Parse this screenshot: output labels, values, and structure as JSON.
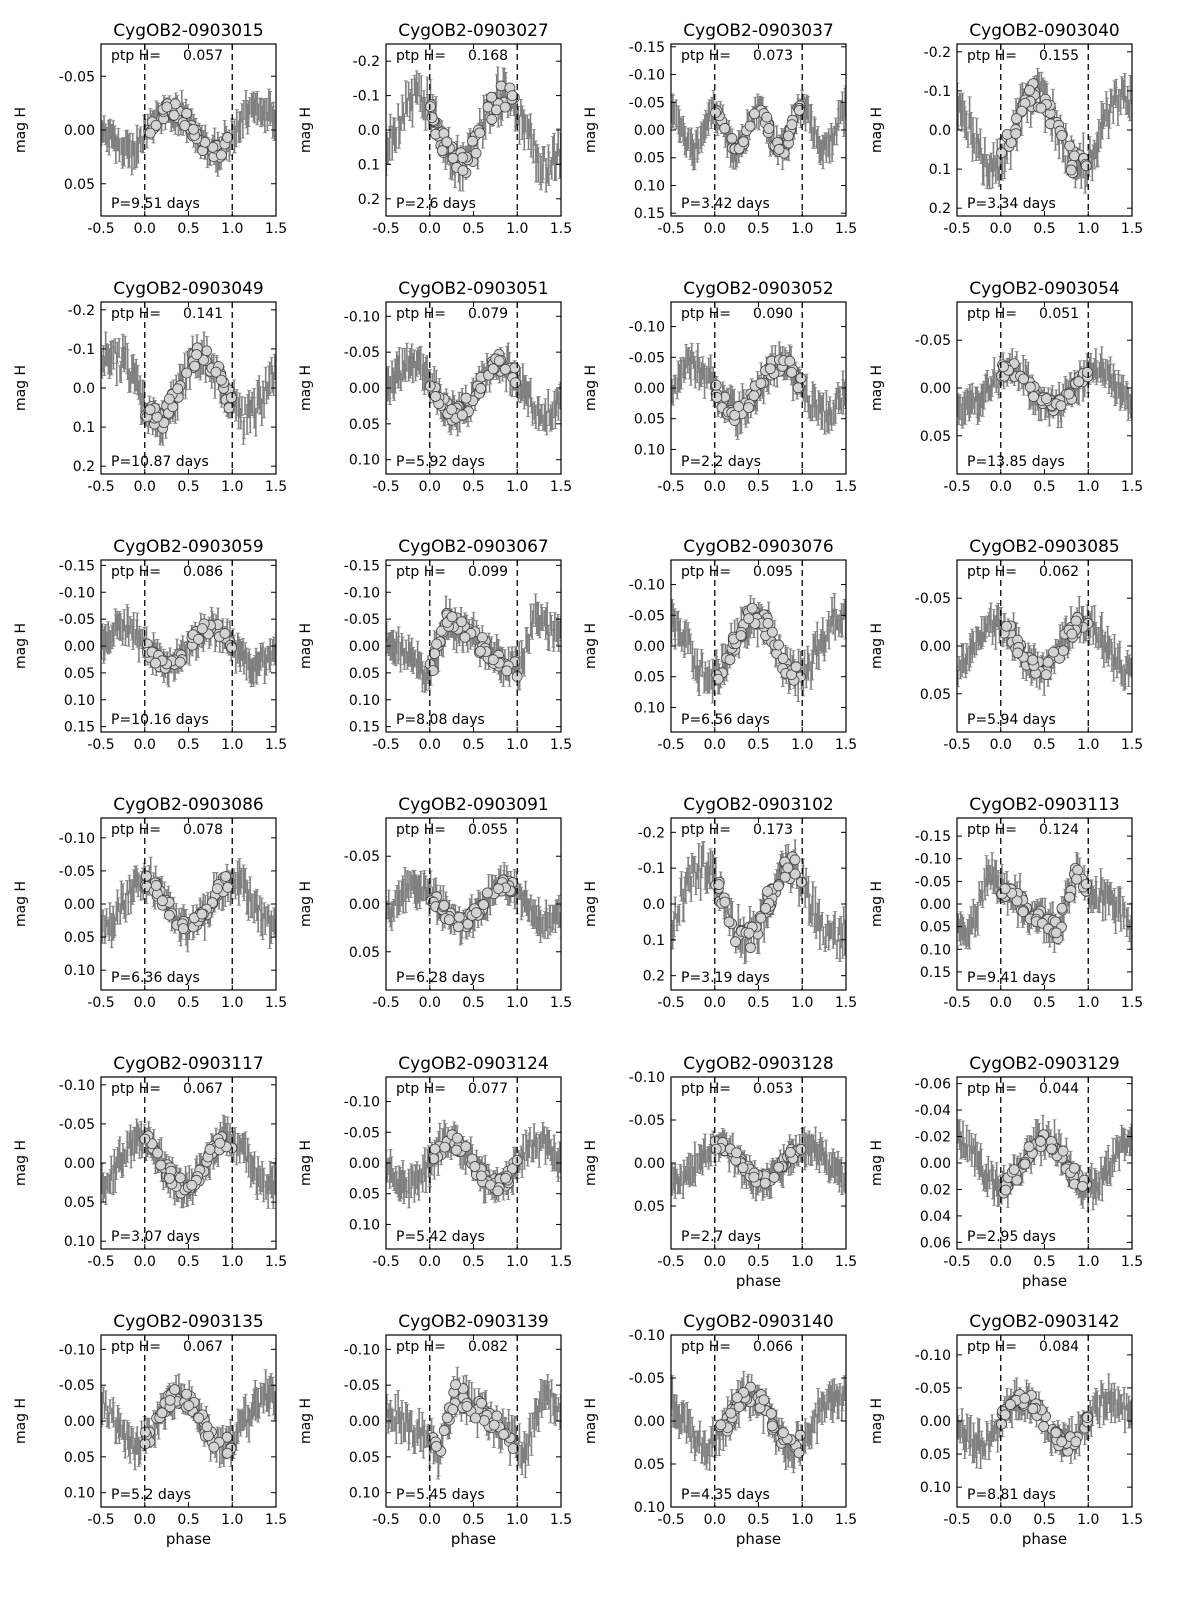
{
  "figure": {
    "ptp_label": "ptp H=",
    "ylabel": "mag H",
    "xlabel": "phase",
    "xticks": [
      "-0.5",
      "0.0",
      "0.5",
      "1.0",
      "1.5"
    ],
    "colors": {
      "errorbar": "#808080",
      "marker_fill": "#d3d3d3",
      "marker_edge": "#444444",
      "axes": "#000000",
      "dashed": "#000000"
    }
  },
  "chart_data": [
    {
      "type": "scatter",
      "title": "CygOB2-0903015",
      "ptp": "0.057",
      "period_text": "P=9.51 days",
      "ylim": [
        0.08,
        -0.08
      ],
      "yticks": [
        "-0.05",
        "0.00",
        "0.05"
      ],
      "show_xlabel": false,
      "amp": 0.02,
      "phase0": 0.3,
      "shape": "sin"
    },
    {
      "type": "scatter",
      "title": "CygOB2-0903027",
      "ptp": "0.168",
      "period_text": "P=2.6 days",
      "ylim": [
        0.25,
        -0.25
      ],
      "yticks": [
        "-0.2",
        "-0.1",
        "0.0",
        "0.1",
        "0.2"
      ],
      "show_xlabel": false,
      "amp": 0.1,
      "phase0": 0.85,
      "shape": "sin"
    },
    {
      "type": "scatter",
      "title": "CygOB2-0903037",
      "ptp": "0.073",
      "period_text": "P=3.42 days",
      "ylim": [
        0.155,
        -0.155
      ],
      "yticks": [
        "-0.15",
        "-0.10",
        "-0.05",
        "0.00",
        "0.05",
        "0.10",
        "0.15"
      ],
      "show_xlabel": false,
      "amp": 0.035,
      "phase0": 0.0,
      "shape": "double"
    },
    {
      "type": "scatter",
      "title": "CygOB2-0903040",
      "ptp": "0.155",
      "period_text": "P=3.34 days",
      "ylim": [
        0.22,
        -0.22
      ],
      "yticks": [
        "-0.2",
        "-0.1",
        "0.0",
        "0.1",
        "0.2"
      ],
      "show_xlabel": false,
      "amp": 0.09,
      "phase0": 0.4,
      "shape": "sin"
    },
    {
      "type": "scatter",
      "title": "CygOB2-0903049",
      "ptp": "0.141",
      "period_text": "P=10.87 days",
      "ylim": [
        0.22,
        -0.22
      ],
      "yticks": [
        "-0.2",
        "-0.1",
        "0.0",
        "0.1",
        "0.2"
      ],
      "show_xlabel": false,
      "amp": 0.08,
      "phase0": 0.65,
      "shape": "sin"
    },
    {
      "type": "scatter",
      "title": "CygOB2-0903051",
      "ptp": "0.079",
      "period_text": "P=5.92 days",
      "ylim": [
        0.12,
        -0.12
      ],
      "yticks": [
        "-0.10",
        "-0.05",
        "0.00",
        "0.05",
        "0.10"
      ],
      "show_xlabel": false,
      "amp": 0.035,
      "phase0": 0.8,
      "shape": "sin"
    },
    {
      "type": "scatter",
      "title": "CygOB2-0903052",
      "ptp": "0.090",
      "period_text": "P=2.2 days",
      "ylim": [
        0.14,
        -0.14
      ],
      "yticks": [
        "-0.10",
        "-0.05",
        "0.00",
        "0.05",
        "0.10"
      ],
      "show_xlabel": false,
      "amp": 0.04,
      "phase0": 0.75,
      "shape": "sin"
    },
    {
      "type": "scatter",
      "title": "CygOB2-0903054",
      "ptp": "0.051",
      "period_text": "P=13.85 days",
      "ylim": [
        0.09,
        -0.09
      ],
      "yticks": [
        "-0.05",
        "0.00",
        "0.05"
      ],
      "show_xlabel": false,
      "amp": 0.02,
      "phase0": 0.1,
      "shape": "sin"
    },
    {
      "type": "scatter",
      "title": "CygOB2-0903059",
      "ptp": "0.086",
      "period_text": "P=10.16 days",
      "ylim": [
        0.16,
        -0.16
      ],
      "yticks": [
        "-0.15",
        "-0.10",
        "-0.05",
        "0.00",
        "0.05",
        "0.10",
        "0.15"
      ],
      "show_xlabel": false,
      "amp": 0.035,
      "phase0": 0.75,
      "shape": "sin"
    },
    {
      "type": "scatter",
      "title": "CygOB2-0903067",
      "ptp": "0.099",
      "period_text": "P=8.08 days",
      "ylim": [
        0.16,
        -0.16
      ],
      "yticks": [
        "-0.15",
        "-0.10",
        "-0.05",
        "0.00",
        "0.05",
        "0.10",
        "0.15"
      ],
      "show_xlabel": false,
      "amp": 0.05,
      "phase0": 0.2,
      "shape": "saw"
    },
    {
      "type": "scatter",
      "title": "CygOB2-0903076",
      "ptp": "0.095",
      "period_text": "P=6.56 days",
      "ylim": [
        0.14,
        -0.14
      ],
      "yticks": [
        "-0.10",
        "-0.05",
        "0.00",
        "0.05",
        "0.10"
      ],
      "show_xlabel": false,
      "amp": 0.05,
      "phase0": 0.45,
      "shape": "sin"
    },
    {
      "type": "scatter",
      "title": "CygOB2-0903085",
      "ptp": "0.062",
      "period_text": "P=5.94 days",
      "ylim": [
        0.09,
        -0.09
      ],
      "yticks": [
        "-0.05",
        "0.00",
        "0.05"
      ],
      "show_xlabel": false,
      "amp": 0.025,
      "phase0": 0.95,
      "shape": "sin"
    },
    {
      "type": "scatter",
      "title": "CygOB2-0903086",
      "ptp": "0.078",
      "period_text": "P=6.36 days",
      "ylim": [
        0.13,
        -0.13
      ],
      "yticks": [
        "-0.10",
        "-0.05",
        "0.00",
        "0.05",
        "0.10"
      ],
      "show_xlabel": false,
      "amp": 0.035,
      "phase0": 0.0,
      "shape": "sin"
    },
    {
      "type": "scatter",
      "title": "CygOB2-0903091",
      "ptp": "0.055",
      "period_text": "P=6.28 days",
      "ylim": [
        0.09,
        -0.09
      ],
      "yticks": [
        "-0.05",
        "0.00",
        "0.05"
      ],
      "show_xlabel": false,
      "amp": 0.02,
      "phase0": 0.85,
      "shape": "sin"
    },
    {
      "type": "scatter",
      "title": "CygOB2-0903102",
      "ptp": "0.173",
      "period_text": "P=3.19 days",
      "ylim": [
        0.24,
        -0.24
      ],
      "yticks": [
        "-0.2",
        "-0.1",
        "0.0",
        "0.1",
        "0.2"
      ],
      "show_xlabel": false,
      "amp": 0.1,
      "phase0": 0.85,
      "shape": "sin"
    },
    {
      "type": "scatter",
      "title": "CygOB2-0903113",
      "ptp": "0.124",
      "period_text": "P=9.41 days",
      "ylim": [
        0.19,
        -0.19
      ],
      "yticks": [
        "-0.15",
        "-0.10",
        "-0.05",
        "0.00",
        "0.05",
        "0.10",
        "0.15"
      ],
      "show_xlabel": false,
      "amp": 0.06,
      "phase0": 0.85,
      "shape": "saw"
    },
    {
      "type": "scatter",
      "title": "CygOB2-0903117",
      "ptp": "0.067",
      "period_text": "P=3.07 days",
      "ylim": [
        0.11,
        -0.11
      ],
      "yticks": [
        "-0.10",
        "-0.05",
        "0.00",
        "0.05",
        "0.10"
      ],
      "show_xlabel": false,
      "amp": 0.03,
      "phase0": 0.95,
      "shape": "sin"
    },
    {
      "type": "scatter",
      "title": "CygOB2-0903124",
      "ptp": "0.077",
      "period_text": "P=5.42 days",
      "ylim": [
        0.14,
        -0.14
      ],
      "yticks": [
        "-0.10",
        "-0.05",
        "0.00",
        "0.05",
        "0.10"
      ],
      "show_xlabel": false,
      "amp": 0.035,
      "phase0": 0.25,
      "shape": "sin"
    },
    {
      "type": "scatter",
      "title": "CygOB2-0903128",
      "ptp": "0.053",
      "period_text": "P=2.7 days",
      "ylim": [
        0.1,
        -0.1
      ],
      "yticks": [
        "-0.10",
        "-0.05",
        "0.00",
        "0.05"
      ],
      "show_xlabel": true,
      "amp": 0.02,
      "phase0": 0.05,
      "shape": "sin"
    },
    {
      "type": "scatter",
      "title": "CygOB2-0903129",
      "ptp": "0.044",
      "period_text": "P=2.95 days",
      "ylim": [
        0.065,
        -0.065
      ],
      "yticks": [
        "-0.06",
        "-0.04",
        "-0.02",
        "0.00",
        "0.02",
        "0.04",
        "0.06"
      ],
      "show_xlabel": true,
      "amp": 0.018,
      "phase0": 0.5,
      "shape": "sin"
    },
    {
      "type": "scatter",
      "title": "CygOB2-0903135",
      "ptp": "0.067",
      "period_text": "P=5.2 days",
      "ylim": [
        0.12,
        -0.12
      ],
      "yticks": [
        "-0.10",
        "-0.05",
        "0.00",
        "0.05",
        "0.10"
      ],
      "show_xlabel": true,
      "amp": 0.035,
      "phase0": 0.4,
      "shape": "sin"
    },
    {
      "type": "scatter",
      "title": "CygOB2-0903139",
      "ptp": "0.082",
      "period_text": "P=5.45 days",
      "ylim": [
        0.12,
        -0.12
      ],
      "yticks": [
        "-0.10",
        "-0.05",
        "0.00",
        "0.05",
        "0.10"
      ],
      "show_xlabel": true,
      "amp": 0.04,
      "phase0": 0.3,
      "shape": "saw"
    },
    {
      "type": "scatter",
      "title": "CygOB2-0903140",
      "ptp": "0.066",
      "period_text": "P=4.35 days",
      "ylim": [
        0.1,
        -0.1
      ],
      "yticks": [
        "-0.10",
        "-0.05",
        "0.00",
        "0.05",
        "0.10"
      ],
      "show_xlabel": true,
      "amp": 0.03,
      "phase0": 0.4,
      "shape": "sin"
    },
    {
      "type": "scatter",
      "title": "CygOB2-0903142",
      "ptp": "0.084",
      "period_text": "P=8.81 days",
      "ylim": [
        0.13,
        -0.13
      ],
      "yticks": [
        "-0.10",
        "-0.05",
        "0.00",
        "0.05",
        "0.10"
      ],
      "show_xlabel": true,
      "amp": 0.035,
      "phase0": 0.25,
      "shape": "sin"
    }
  ]
}
